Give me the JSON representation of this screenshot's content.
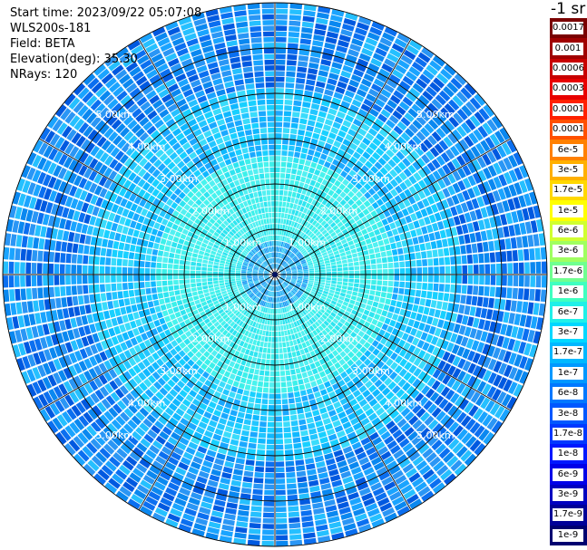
{
  "header": {
    "start_time": "Start time: 2023/09/22 05:07:08",
    "instrument": "WLS200s-181",
    "field": "Field: BETA",
    "elevation": "Elevation(deg): 35.30",
    "nrays": "NRays: 120"
  },
  "colorbar": {
    "unit": "-1 sr",
    "labels": [
      "0.0017",
      "0.001",
      "0.0006",
      "0.0003",
      "0.00017",
      "0.0001",
      "6e-5",
      "3e-5",
      "1.7e-5",
      "1e-5",
      "6e-6",
      "3e-6",
      "1.7e-6",
      "1e-6",
      "6e-7",
      "3e-7",
      "1.7e-7",
      "1e-7",
      "6e-8",
      "3e-8",
      "1.7e-8",
      "1e-8",
      "6e-9",
      "3e-9",
      "1.7e-9",
      "1e-9"
    ],
    "colors": [
      "#7a0000",
      "#a00000",
      "#c80000",
      "#e80000",
      "#ff2000",
      "#ff5000",
      "#ff8000",
      "#ffb000",
      "#ffd800",
      "#ffff00",
      "#d0ff30",
      "#a0ff60",
      "#70ff90",
      "#40ffc0",
      "#20f0e8",
      "#00d8ff",
      "#00b8ff",
      "#0098ff",
      "#0078ff",
      "#0058ff",
      "#0038ff",
      "#0018ff",
      "#0000e8",
      "#0000c0",
      "#000098",
      "#000070"
    ]
  },
  "chart_data": {
    "type": "heatmap",
    "projection": "polar PPI",
    "field": "BETA",
    "elevation_deg": 35.3,
    "n_rays": 120,
    "max_range_km": 6.0,
    "range_rings_km": [
      1,
      2,
      3,
      4,
      5,
      6
    ],
    "radial_lines_deg": [
      0,
      30,
      60,
      90,
      120,
      150,
      180,
      210,
      240,
      270,
      300,
      330
    ],
    "range_labels": [
      "1.00km",
      "2.00km",
      "3.00km",
      "4.00km",
      "5.00km"
    ],
    "color_scale": "log",
    "vlim": [
      1e-09,
      0.0017
    ],
    "dominant_range": [
      "1e-8",
      "1e-6"
    ]
  }
}
